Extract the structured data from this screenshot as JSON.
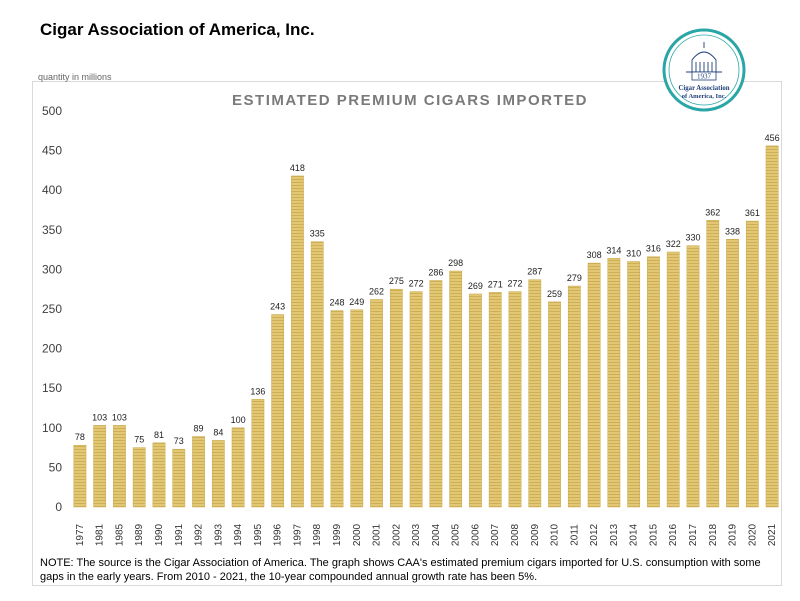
{
  "header": {
    "title": "Cigar Association of America, Inc."
  },
  "logo": {
    "year": "1937",
    "line1": "Cigar Association",
    "line2": "of America, Inc."
  },
  "chart_data": {
    "type": "bar",
    "title": "ESTIMATED PREMIUM CIGARS IMPORTED",
    "ylabel": "quantity in millions",
    "xlabel": "",
    "ylim": [
      0,
      500
    ],
    "yticks": [
      0,
      50,
      100,
      150,
      200,
      250,
      300,
      350,
      400,
      450,
      500
    ],
    "grid": false,
    "categories": [
      "1977",
      "1981",
      "1985",
      "1989",
      "1990",
      "1991",
      "1992",
      "1993",
      "1994",
      "1995",
      "1996",
      "1997",
      "1998",
      "1999",
      "2000",
      "2001",
      "2002",
      "2003",
      "2004",
      "2005",
      "2006",
      "2007",
      "2008",
      "2009",
      "2010",
      "2011",
      "2012",
      "2013",
      "2014",
      "2015",
      "2016",
      "2017",
      "2018",
      "2019",
      "2020",
      "2021"
    ],
    "values": [
      78,
      103,
      103,
      75,
      81,
      73,
      89,
      84,
      100,
      136,
      243,
      418,
      335,
      248,
      249,
      262,
      275,
      272,
      286,
      298,
      269,
      271,
      272,
      287,
      259,
      279,
      308,
      314,
      310,
      316,
      322,
      330,
      362,
      338,
      361,
      456
    ],
    "bar_color": "#e2c775"
  },
  "note": "NOTE: The source is the Cigar Association of America. The graph shows CAA's estimated premium cigars imported for U.S. consumption with some gaps in the early years. From 2010 - 2021, the 10-year compounded annual growth rate has been 5%."
}
